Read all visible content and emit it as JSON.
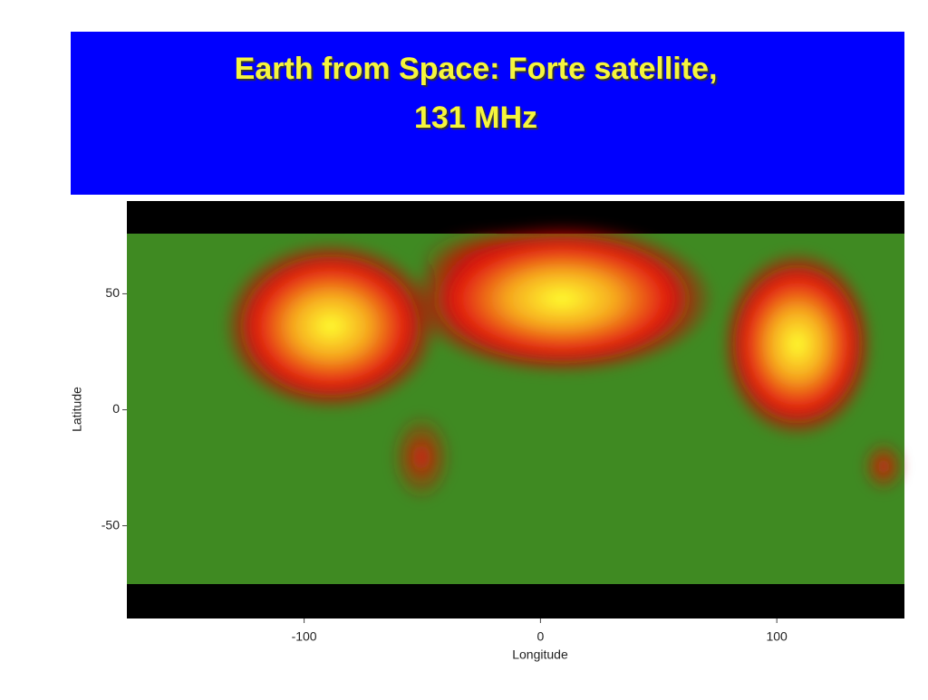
{
  "chart_data": {
    "type": "map",
    "title": "Earth from Space:  Forte satellite,",
    "subtitle": "131 MHz",
    "x_label": "Longitude",
    "y_label": "Latitude",
    "xlim": [
      -175,
      154
    ],
    "ylim": [
      -90,
      90
    ],
    "xticks": [
      -100,
      0,
      100
    ],
    "yticks": [
      50,
      0,
      -50
    ]
  }
}
